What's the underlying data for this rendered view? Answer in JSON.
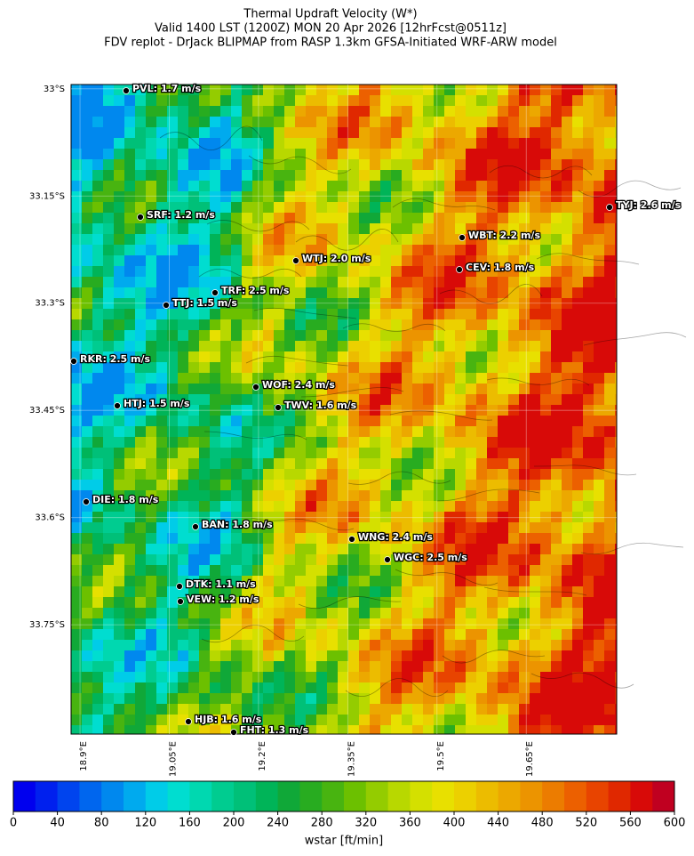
{
  "header": {
    "title": [
      "Thermal Updraft Velocity (W*)",
      "Valid 1400 LST (1200Z) MON 20 Apr 2026 [12hrFcst@0511z]",
      "FDV replot - DrJack BLIPMAP from RASP 1.3km GFSA-Initiated WRF-ARW model"
    ]
  },
  "map": {
    "latlim": [
      -32.994,
      -33.903
    ],
    "lonlim": [
      18.885,
      19.802
    ],
    "grid": true,
    "lat_ticks": [
      {
        "value": -33,
        "label": "33°S"
      },
      {
        "value": -33.15,
        "label": "33.15°S"
      },
      {
        "value": -33.3,
        "label": "33.3°S"
      },
      {
        "value": -33.45,
        "label": "33.45°S"
      },
      {
        "value": -33.6,
        "label": "33.6°S"
      },
      {
        "value": -33.75,
        "label": "33.75°S"
      }
    ],
    "lon_ticks": [
      {
        "value": 18.9,
        "label": "18.9°E"
      },
      {
        "value": 19.05,
        "label": "19.05°E"
      },
      {
        "value": 19.2,
        "label": "19.2°E"
      },
      {
        "value": 19.35,
        "label": "19.35°E"
      },
      {
        "value": 19.5,
        "label": "19.5°E"
      },
      {
        "value": 19.65,
        "label": "19.65°E"
      }
    ],
    "stations": [
      "PVL: 1.7 m/s",
      "SRF: 1.2 m/s",
      "TYJ: 2.6 m/s",
      "WBT: 2.2 m/s",
      "WTJ: 2.0 m/s",
      "CEV: 1.8 m/s",
      "TRF: 2.5 m/s",
      "TTJ: 1.5 m/s",
      "RKR: 2.5 m/s",
      "WOF: 2.4 m/s",
      "HTJ: 1.5 m/s",
      "TWV: 1.6 m/s",
      "DIE: 1.8 m/s",
      "BAN: 1.8 m/s",
      "WNG: 2.4 m/s",
      "WGC: 2.5 m/s",
      "DTK: 1.1 m/s",
      "VEW: 1.2 m/s",
      "HJB: 1.6 m/s",
      "FHT: 1.3 m/s"
    ]
  },
  "colorbar": {
    "label": "wstar [ft/min]",
    "lim": [
      0,
      600
    ],
    "ticks": [
      0,
      40,
      80,
      120,
      160,
      200,
      240,
      280,
      320,
      360,
      400,
      440,
      480,
      520,
      560,
      600
    ],
    "colors": [
      "#0000ee",
      "#0020ee",
      "#0044ee",
      "#0066ee",
      "#0088ee",
      "#00aaee",
      "#00cce8",
      "#00ddd0",
      "#00d8b0",
      "#00cc90",
      "#00c078",
      "#00b458",
      "#10a838",
      "#28ac20",
      "#48b410",
      "#6cc000",
      "#94cc00",
      "#b8d800",
      "#d4e000",
      "#e8e000",
      "#ecd000",
      "#ecbc00",
      "#eca800",
      "#ec9400",
      "#ec7c00",
      "#ec6000",
      "#e84400",
      "#e02800",
      "#d80a08",
      "#c00020"
    ]
  }
}
